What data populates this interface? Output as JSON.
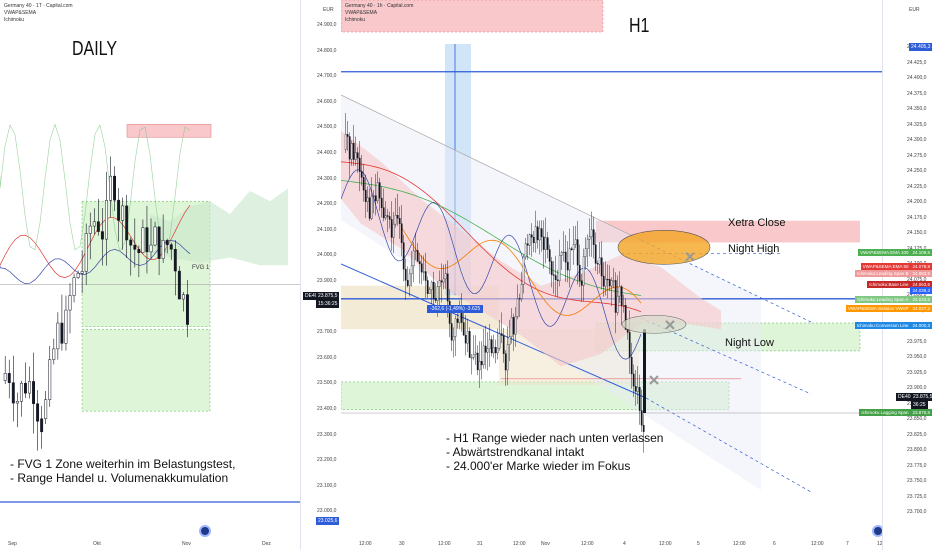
{
  "colors": {
    "up": "#131722",
    "bg": "#ffffff",
    "redZone": "#f8c8ca",
    "greenZone": "#d9f5d3",
    "blueLine": "#2e5bd7",
    "orange": "#f5a623"
  },
  "left": {
    "symbol": "Germany 40 · 1T · Capital.com",
    "indicators": [
      "VWAP&SEMA",
      "Ichimoku"
    ],
    "title": "DAILY",
    "fvg_label": "FVG 1",
    "note_lines": [
      "- FVG 1 Zone weiterhin im Belastungstest,",
      "- Range Handel u. Volumenakkumulation"
    ],
    "x_labels": [
      "Sep",
      "Okt",
      "Nov",
      "Dez"
    ]
  },
  "middle": {
    "currency": "EUR",
    "price_labels": [
      "24.900,0",
      "24.800,0",
      "24.700,0",
      "24.600,0",
      "24.500,0",
      "24.400,0",
      "24.300,0",
      "24.200,0",
      "24.100,0",
      "24.000,0",
      "23.900,0",
      "23.800,0",
      "23.700,0",
      "23.600,0",
      "23.500,0",
      "23.400,0",
      "23.300,0",
      "23.200,0",
      "23.100,0",
      "23.000,0"
    ],
    "current_tag": "DE40",
    "current_price": "23.875,5",
    "current_time": "15:36:25",
    "low_tag": "23.025,6"
  },
  "right": {
    "symbol": "Germany 40 · 1h · Capital.com",
    "indicators": [
      "VWAP&SEMA",
      "Ichimoku"
    ],
    "title": "H1",
    "currency": "EUR",
    "measure": "-362,6 (-1,49%) -3.625",
    "labels": {
      "xetra": "Xetra Close",
      "night_high": "Night High",
      "night_low": "Night Low"
    },
    "note_lines": [
      "- H1 Range wieder nach unten verlassen",
      "- Abwärtstrendkanal intakt",
      "- 24.000'er Marke wieder im Fokus"
    ],
    "x_labels": [
      "12:00",
      "30",
      "12:00",
      "31",
      "12:00",
      "Nov",
      "12:00",
      "4",
      "12:00",
      "5",
      "12:00",
      "6",
      "12:00",
      "7",
      "12:00"
    ],
    "price_labels": [
      "24.450,0",
      "24.425,0",
      "24.400,0",
      "24.375,0",
      "24.350,0",
      "24.325,0",
      "24.300,0",
      "24.275,0",
      "24.250,0",
      "24.225,0",
      "24.200,0",
      "24.175,0",
      "24.150,0",
      "24.125,0",
      "24.100,0",
      "24.075,0",
      "24.050,0",
      "24.025,0",
      "24.000,0",
      "23.975,0",
      "23.950,0",
      "23.925,0",
      "23.900,0",
      "23.875,0",
      "23.850,0",
      "23.825,0",
      "23.800,0",
      "23.775,0",
      "23.750,0",
      "23.725,0",
      "23.700,0"
    ],
    "top_tag": "24.405,3",
    "tags": [
      {
        "text": "VWAP&SEMA:EMA 100",
        "value": "24.109,5",
        "color": "#4caf50"
      },
      {
        "text": "VWAP&SEMA:EMA 50",
        "value": "24.078,9",
        "color": "#e53935"
      },
      {
        "text": "Ichimoku:Leading Span B",
        "value": "24.063,5",
        "color": "#ef9a9a"
      },
      {
        "text": "Ichimoku:Base Line",
        "value": "24.063,5",
        "color": "#c62828"
      },
      {
        "text": "",
        "value": "24.039,3",
        "color": "#2962ff"
      },
      {
        "text": "Ichimoku:Leading Span A",
        "value": "24.033,5",
        "color": "#81c784"
      },
      {
        "text": "VWAP&SEMA:Session VWAP",
        "value": "24.027,2",
        "color": "#ff9800"
      },
      {
        "text": "Ichimoku:Conversion Line",
        "value": "24.000,3",
        "color": "#1e88e5"
      },
      {
        "text": "Ichimoku:Lagging Span",
        "value": "23.875,5",
        "color": "#43a047"
      }
    ],
    "current_tag": "DE40",
    "current_price": "23.875,5",
    "current_time": "36:25"
  },
  "chart_data": [
    {
      "type": "candlestick",
      "title": "DAILY",
      "symbol": "Germany 40 · 1T",
      "x": [
        "Sep",
        "Okt",
        "Nov",
        "Dez"
      ],
      "ylim": [
        23000,
        24950
      ],
      "zones": [
        {
          "name": "FVG 1",
          "kind": "fair value gap",
          "y": [
            23700,
            24200
          ]
        },
        {
          "name": "supply",
          "kind": "resistance",
          "y": [
            24450,
            24520
          ]
        }
      ],
      "annotations": [
        "FVG 1"
      ]
    },
    {
      "type": "candlestick",
      "title": "H1",
      "symbol": "Germany 40 · 1h",
      "x": [
        "30",
        "31",
        "Nov",
        "4",
        "5",
        "6",
        "7"
      ],
      "ylim": [
        23700,
        24460
      ],
      "levels": [
        {
          "name": "Xetra Close",
          "y": 24135
        },
        {
          "name": "Night High",
          "y": 24110
        },
        {
          "name": "Night Low",
          "y": 23990
        },
        {
          "name": "horizontal line",
          "y": 24405.3
        }
      ],
      "last_price": 23875.5,
      "measure": "-362,6 (-1,49%) -3.625",
      "annotations": [
        "Xetra Close",
        "Night High",
        "Night Low"
      ]
    }
  ]
}
